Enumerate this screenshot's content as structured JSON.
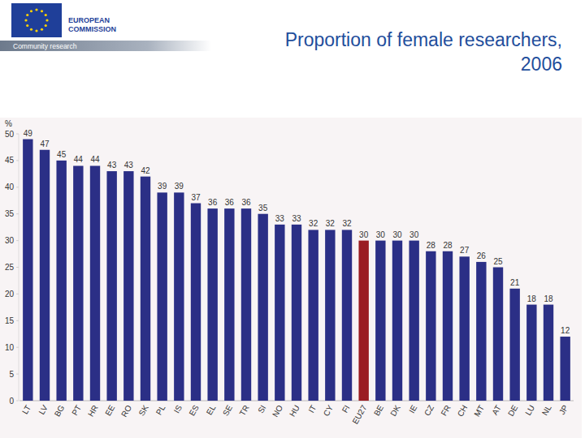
{
  "header": {
    "logo_text": [
      "EUROPEAN",
      "COMMISSION"
    ],
    "banner": "Community research"
  },
  "chart_data": {
    "type": "bar",
    "title": "Proportion of female researchers, 2006",
    "y_label": "%",
    "categories": [
      "LT",
      "LV",
      "BG",
      "PT",
      "HR",
      "EE",
      "RO",
      "SK",
      "PL",
      "IS",
      "ES",
      "EL",
      "SE",
      "TR",
      "SI",
      "NO",
      "HU",
      "IT",
      "CY",
      "FI",
      "EU27",
      "BE",
      "DK",
      "IE",
      "CZ",
      "FR",
      "CH",
      "MT",
      "AT",
      "DE",
      "LU",
      "NL",
      "JP"
    ],
    "values": [
      49,
      47,
      45,
      44,
      44,
      43,
      43,
      42,
      39,
      39,
      37,
      36,
      36,
      36,
      35,
      33,
      33,
      32,
      32,
      32,
      30,
      30,
      30,
      30,
      28,
      28,
      27,
      26,
      25,
      21,
      18,
      18,
      12
    ],
    "colors": [
      "#2b2f86",
      "#2b2f86",
      "#2b2f86",
      "#2b2f86",
      "#2b2f86",
      "#2b2f86",
      "#2b2f86",
      "#2b2f86",
      "#2b2f86",
      "#2b2f86",
      "#2b2f86",
      "#2b2f86",
      "#2b2f86",
      "#2b2f86",
      "#2b2f86",
      "#2b2f86",
      "#2b2f86",
      "#2b2f86",
      "#2b2f86",
      "#2b2f86",
      "#9a1c22",
      "#2b2f86",
      "#2b2f86",
      "#2b2f86",
      "#2b2f86",
      "#2b2f86",
      "#2b2f86",
      "#2b2f86",
      "#2b2f86",
      "#2b2f86",
      "#2b2f86",
      "#2b2f86",
      "#2b2f86"
    ],
    "ylim": [
      0,
      50
    ],
    "yticks": [
      0,
      5,
      10,
      15,
      20,
      25,
      30,
      35,
      40,
      45,
      50
    ],
    "grid": false,
    "data_labels": true
  }
}
